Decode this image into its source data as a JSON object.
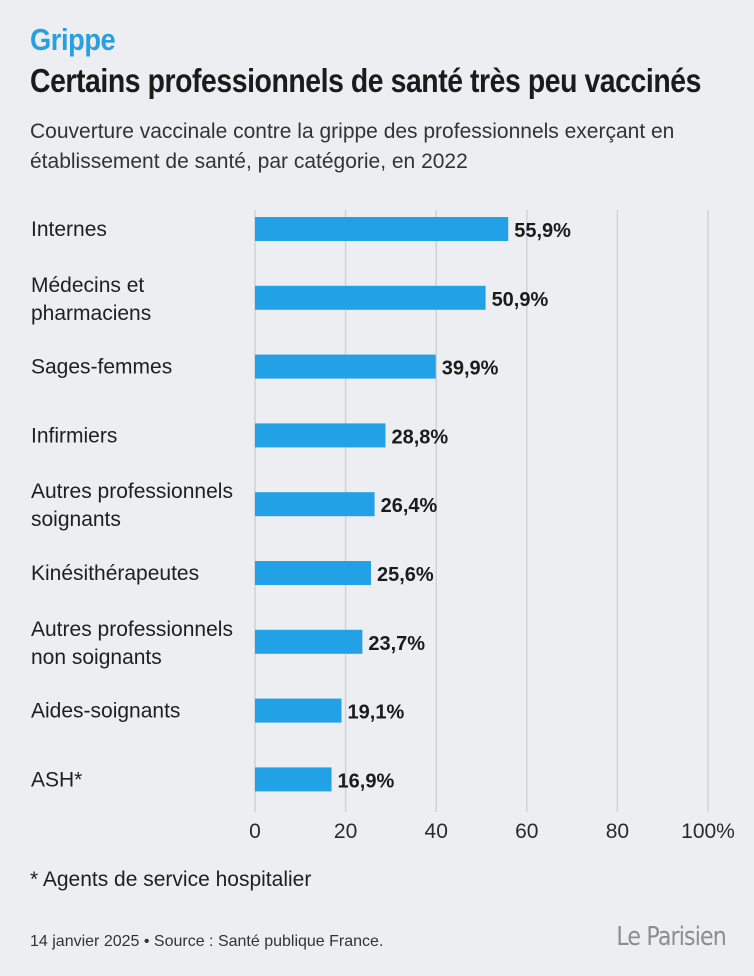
{
  "header": {
    "kicker": "Grippe",
    "title": "Certains professionnels de santé très peu vaccinés",
    "subtitle": "Couverture vaccinale contre la grippe des professionnels exerçant en établissement de santé, par catégorie, en 2022"
  },
  "chart_data": {
    "type": "bar",
    "orientation": "horizontal",
    "categories": [
      [
        "Internes"
      ],
      [
        "Médecins et",
        "pharmaciens"
      ],
      [
        "Sages-femmes"
      ],
      [
        "Infirmiers"
      ],
      [
        "Autres professionnels",
        "soignants"
      ],
      [
        "Kinésithérapeutes"
      ],
      [
        "Autres professionnels",
        "non soignants"
      ],
      [
        "Aides-soignants"
      ],
      [
        "ASH*"
      ]
    ],
    "values": [
      55.9,
      50.9,
      39.9,
      28.8,
      26.4,
      25.6,
      23.7,
      19.1,
      16.9
    ],
    "value_labels": [
      "55,9%",
      "50,9%",
      "39,9%",
      "28,8%",
      "26,4%",
      "25,6%",
      "23,7%",
      "19,1%",
      "16,9%"
    ],
    "xlim": [
      0,
      100
    ],
    "xticks": [
      0,
      20,
      40,
      60,
      80,
      100
    ],
    "xtick_labels": [
      "0",
      "20",
      "40",
      "60",
      "80",
      "100%"
    ],
    "grid": true,
    "bar_color": "#22a1e6"
  },
  "footnote": "* Agents de service hospitalier",
  "credit": "14 janvier 2025 • Source : Santé publique France.",
  "logo_text": "Le Parisien"
}
